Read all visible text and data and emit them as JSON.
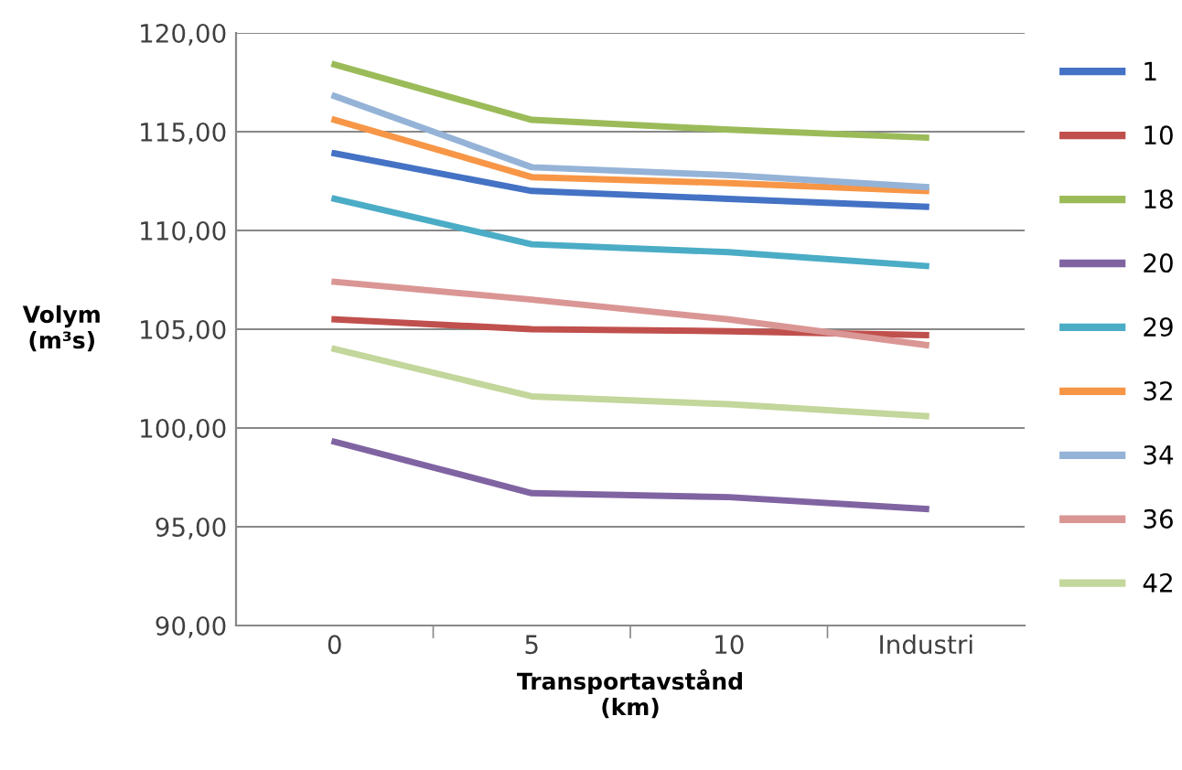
{
  "chart_data": {
    "type": "line",
    "xlabel": "Transportavstånd\n(km)",
    "ylabel": "Volym\n(m³s)",
    "categories": [
      "0",
      "5",
      "10",
      "Industri"
    ],
    "ylim": [
      90,
      120
    ],
    "yticks": [
      {
        "value": 90,
        "label": "90,00"
      },
      {
        "value": 95,
        "label": "95,00"
      },
      {
        "value": 100,
        "label": "100,00"
      },
      {
        "value": 105,
        "label": "105,00"
      },
      {
        "value": 110,
        "label": "110,00"
      },
      {
        "value": 115,
        "label": "115,00"
      },
      {
        "value": 120,
        "label": "120,00"
      }
    ],
    "grid": "y",
    "legend": "right",
    "marker": "none",
    "line_style": "solid",
    "series": [
      {
        "name": "1",
        "color": "#4472c4",
        "values": [
          113.9,
          112.0,
          111.6,
          111.2
        ]
      },
      {
        "name": "10",
        "color": "#c0504d",
        "values": [
          105.5,
          105.0,
          104.9,
          104.7
        ]
      },
      {
        "name": "18",
        "color": "#9bbb59",
        "values": [
          118.4,
          115.6,
          115.1,
          114.7
        ]
      },
      {
        "name": "20",
        "color": "#8064a2",
        "values": [
          99.3,
          96.7,
          96.5,
          95.9
        ]
      },
      {
        "name": "29",
        "color": "#4bacc6",
        "values": [
          111.6,
          109.3,
          108.9,
          108.2
        ]
      },
      {
        "name": "32",
        "color": "#f79646",
        "values": [
          115.6,
          112.7,
          112.4,
          112.0
        ]
      },
      {
        "name": "34",
        "color": "#95b3d7",
        "values": [
          116.8,
          113.2,
          112.8,
          112.2
        ]
      },
      {
        "name": "36",
        "color": "#da9694",
        "values": [
          107.4,
          106.5,
          105.5,
          104.2
        ]
      },
      {
        "name": "42",
        "color": "#c3d69b",
        "values": [
          104.0,
          101.6,
          101.2,
          100.6
        ]
      }
    ]
  }
}
